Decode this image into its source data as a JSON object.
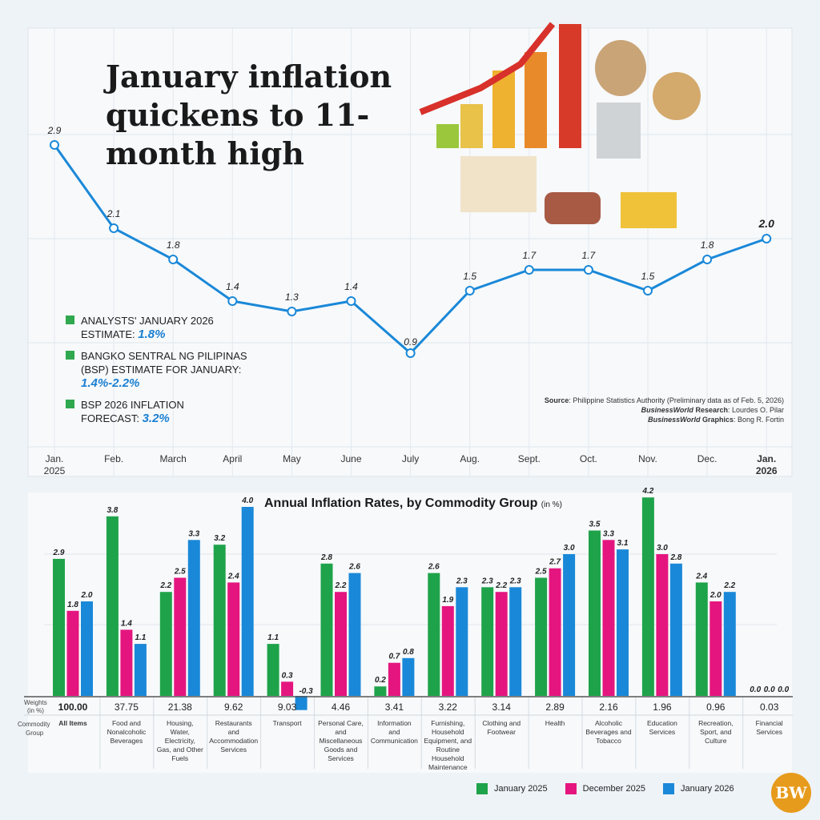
{
  "title": "January inflation quickens to 11-month high",
  "notes": [
    {
      "label": "ANALYSTS' JANUARY 2026 ESTIMATE: ",
      "value": "1.8%"
    },
    {
      "label": "BANGKO SENTRAL NG PILIPINAS (BSP) ESTIMATE FOR JANUARY: ",
      "value": "1.4%-2.2%"
    },
    {
      "label": "BSP 2026 INFLATION FORECAST: ",
      "value": "3.2%"
    }
  ],
  "source": {
    "source_label": "Source",
    "source_text": ": Philippine Statistics Authority (Preliminary data as of Feb. 5, 2026)",
    "research_brand": "BusinessWorld",
    "research_label": " Research",
    "research_text": ": Lourdes O. Pilar",
    "graphics_brand": "BusinessWorld",
    "graphics_label": " Graphics",
    "graphics_text": ": Bong R. Fortin"
  },
  "colors": {
    "line": "#1a88d8",
    "jan2025": "#1fa34a",
    "dec2025": "#e5157f",
    "jan2026": "#1a88d8",
    "logo": "#e79b1c"
  },
  "logo_text": "BW",
  "chart_data": [
    {
      "type": "line",
      "categories": [
        "Jan. 2025",
        "Feb.",
        "March",
        "April",
        "May",
        "June",
        "July",
        "Aug.",
        "Sept.",
        "Oct.",
        "Nov.",
        "Dec.",
        "Jan. 2026"
      ],
      "values": [
        2.9,
        2.1,
        1.8,
        1.4,
        1.3,
        1.4,
        0.9,
        1.5,
        1.7,
        1.7,
        1.5,
        1.8,
        2.0
      ],
      "grid": true
    },
    {
      "type": "bar",
      "title": "Annual Inflation Rates, by Commodity Group",
      "title_unit": "(in %)",
      "weights_label": "Weights (in %)",
      "group_label": "Commodity Group",
      "categories": [
        "All Items",
        "Food and Nonalcoholic Beverages",
        "Housing, Water, Electricity, Gas, and Other Fuels",
        "Restaurants and Accommodation Services",
        "Transport",
        "Personal Care, and Miscellaneous Goods and Services",
        "Information and Communication",
        "Furnishing, Household Equipment, and Routine Household Maintenance",
        "Clothing and Footwear",
        "Health",
        "Alcoholic Beverages and Tobacco",
        "Education Services",
        "Recreation, Sport, and Culture",
        "Financial Services"
      ],
      "weights": [
        "100.00",
        "37.75",
        "21.38",
        "9.62",
        "9.03",
        "4.46",
        "3.41",
        "3.22",
        "3.14",
        "2.89",
        "2.16",
        "1.96",
        "0.96",
        "0.03"
      ],
      "series": [
        {
          "name": "January 2025",
          "values": [
            2.9,
            3.8,
            2.2,
            3.2,
            1.1,
            2.8,
            0.2,
            2.6,
            2.3,
            2.5,
            3.5,
            4.2,
            2.4,
            0.0
          ]
        },
        {
          "name": "December 2025",
          "values": [
            1.8,
            1.4,
            2.5,
            2.4,
            0.3,
            2.2,
            0.7,
            1.9,
            2.2,
            2.7,
            3.3,
            3.0,
            2.0,
            0.0
          ]
        },
        {
          "name": "January 2026",
          "values": [
            2.0,
            1.1,
            3.3,
            4.0,
            -0.3,
            2.6,
            0.8,
            2.3,
            2.3,
            3.0,
            3.1,
            2.8,
            2.2,
            0.0
          ]
        }
      ]
    }
  ]
}
